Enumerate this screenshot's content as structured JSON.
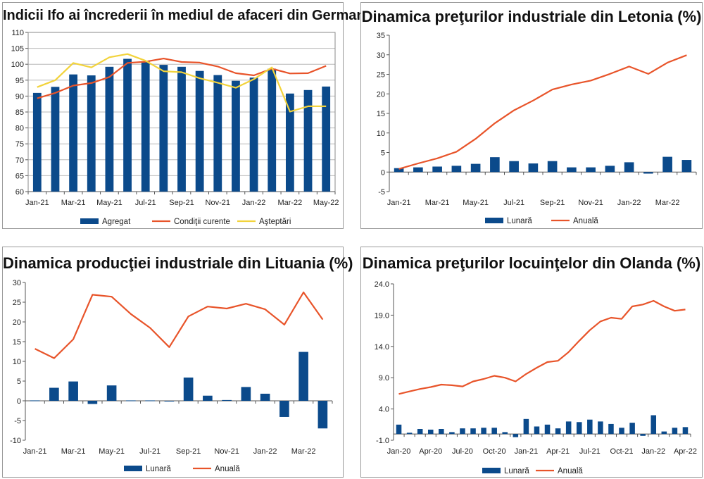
{
  "chart_data": [
    {
      "type": "bar+line",
      "title": "Indicii Ifo ai încrederii în mediul de afaceri din Germania",
      "categories": [
        "Jan-21",
        "Feb-21",
        "Mar-21",
        "Apr-21",
        "May-21",
        "Jun-21",
        "Jul-21",
        "Aug-21",
        "Sep-21",
        "Oct-21",
        "Nov-21",
        "Dec-21",
        "Jan-22",
        "Feb-22",
        "Mar-22",
        "Apr-22",
        "May-22"
      ],
      "tick_labels": [
        "Jan-21",
        "Mar-21",
        "May-21",
        "Jul-21",
        "Sep-21",
        "Nov-21",
        "Jan-22",
        "Mar-22",
        "May-22"
      ],
      "ylim": [
        60,
        110
      ],
      "yticks": [
        60,
        65,
        70,
        75,
        80,
        85,
        90,
        95,
        100,
        105,
        110
      ],
      "legend": "bottom",
      "series": [
        {
          "name": "Agregat",
          "kind": "bar",
          "color": "#0b4a8b",
          "values": [
            91,
            92.9,
            96.8,
            96.5,
            99.2,
            101.7,
            100.9,
            99.8,
            99.2,
            97.9,
            96.6,
            94.8,
            95.8,
            98.6,
            90.8,
            91.9,
            93.0
          ]
        },
        {
          "name": "Condiţii curente",
          "kind": "line",
          "color": "#e8542a",
          "values": [
            89.3,
            91.0,
            93.3,
            94.1,
            96.0,
            100.4,
            100.8,
            101.8,
            100.7,
            100.5,
            99.3,
            97.2,
            96.5,
            98.6,
            97.1,
            97.2,
            99.5
          ]
        },
        {
          "name": "Aşteptări",
          "kind": "line",
          "color": "#f2d33b",
          "values": [
            92.8,
            95.0,
            100.4,
            99.0,
            102.2,
            103.2,
            101.1,
            97.8,
            97.5,
            95.6,
            94.2,
            92.6,
            95.3,
            99.0,
            85.1,
            86.8,
            86.8
          ]
        }
      ]
    },
    {
      "type": "bar+line",
      "title": "Dinamica preţurilor industriale din Letonia (%)",
      "categories": [
        "Jan-21",
        "Feb-21",
        "Mar-21",
        "Apr-21",
        "May-21",
        "Jun-21",
        "Jul-21",
        "Aug-21",
        "Sep-21",
        "Oct-21",
        "Nov-21",
        "Dec-21",
        "Jan-22",
        "Feb-22",
        "Mar-22",
        "Apr-22"
      ],
      "tick_labels": [
        "Jan-21",
        "Mar-21",
        "May-21",
        "Jul-21",
        "Sep-21",
        "Nov-21",
        "Jan-22",
        "Mar-22"
      ],
      "ylim": [
        -5,
        35
      ],
      "yticks": [
        -5,
        0,
        5,
        10,
        15,
        20,
        25,
        30,
        35
      ],
      "legend": "bottom",
      "series": [
        {
          "name": "Lunară",
          "kind": "bar",
          "color": "#0b4a8b",
          "values": [
            1.0,
            1.2,
            1.4,
            1.6,
            2.1,
            3.8,
            2.8,
            2.2,
            2.8,
            1.2,
            1.2,
            1.6,
            2.5,
            -0.4,
            3.9,
            3.1
          ]
        },
        {
          "name": "Anuală",
          "kind": "line",
          "color": "#e8542a",
          "values": [
            0.8,
            2.2,
            3.5,
            5.2,
            8.5,
            12.5,
            15.8,
            18.3,
            21.1,
            22.4,
            23.4,
            25.1,
            27.0,
            25.1,
            28.0,
            29.9
          ]
        }
      ]
    },
    {
      "type": "bar+line",
      "title": "Dinamica producţiei industriale din Lituania (%)",
      "categories": [
        "Jan-21",
        "Feb-21",
        "Mar-21",
        "Apr-21",
        "May-21",
        "Jun-21",
        "Jul-21",
        "Aug-21",
        "Sep-21",
        "Oct-21",
        "Nov-21",
        "Dec-21",
        "Jan-22",
        "Feb-22",
        "Mar-22",
        "Apr-22"
      ],
      "tick_labels": [
        "Jan-21",
        "Mar-21",
        "May-21",
        "Jul-21",
        "Sep-21",
        "Nov-21",
        "Jan-22",
        "Mar-22"
      ],
      "ylim": [
        -10,
        30
      ],
      "yticks": [
        -10,
        -5,
        0,
        5,
        10,
        15,
        20,
        25,
        30
      ],
      "legend": "bottom",
      "series": [
        {
          "name": "Lunară",
          "kind": "bar",
          "color": "#0b4a8b",
          "values": [
            0.1,
            3.3,
            4.9,
            -0.8,
            3.9,
            0.1,
            0.1,
            0.0,
            5.9,
            1.3,
            0.2,
            3.5,
            1.8,
            -4.1,
            12.4,
            -7.0
          ]
        },
        {
          "name": "Anuală",
          "kind": "line",
          "color": "#e8542a",
          "values": [
            13.2,
            10.8,
            15.6,
            26.9,
            26.4,
            22.0,
            18.5,
            13.6,
            21.4,
            23.9,
            23.4,
            24.6,
            23.2,
            19.3,
            27.5,
            20.6
          ]
        }
      ]
    },
    {
      "type": "bar+line",
      "title": "Dinamica preţurilor locuinţelor din Olanda (%)",
      "categories": [
        "Jan-20",
        "Feb-20",
        "Mar-20",
        "Apr-20",
        "May-20",
        "Jun-20",
        "Jul-20",
        "Aug-20",
        "Sep-20",
        "Oct-20",
        "Nov-20",
        "Dec-20",
        "Jan-21",
        "Feb-21",
        "Mar-21",
        "Apr-21",
        "May-21",
        "Jun-21",
        "Jul-21",
        "Aug-21",
        "Sep-21",
        "Oct-21",
        "Nov-21",
        "Dec-21",
        "Jan-22",
        "Feb-22",
        "Mar-22",
        "Apr-22"
      ],
      "tick_labels": [
        "Jan-20",
        "Apr-20",
        "Jul-20",
        "Oct-20",
        "Jan-21",
        "Apr-21",
        "Jul-21",
        "Oct-21",
        "Jan-22",
        "Apr-22"
      ],
      "ylim": [
        -1.0,
        24.0
      ],
      "yticks": [
        -1.0,
        4.0,
        9.0,
        14.0,
        19.0,
        24.0
      ],
      "legend": "bottom",
      "series": [
        {
          "name": "Lunară",
          "kind": "bar",
          "color": "#0b4a8b",
          "values": [
            1.5,
            0.2,
            0.8,
            0.7,
            0.8,
            0.3,
            0.9,
            0.9,
            1.0,
            1.0,
            0.3,
            -0.5,
            2.4,
            1.2,
            1.5,
            0.9,
            2.0,
            1.9,
            2.3,
            2.0,
            1.6,
            1.0,
            1.8,
            -0.3,
            3.0,
            0.4,
            1.0,
            1.1
          ]
        },
        {
          "name": "Anuală",
          "kind": "line",
          "color": "#e8542a",
          "values": [
            6.4,
            6.8,
            7.2,
            7.5,
            7.9,
            7.8,
            7.6,
            8.4,
            8.8,
            9.3,
            9.0,
            8.4,
            9.6,
            10.6,
            11.5,
            11.7,
            13.1,
            14.9,
            16.6,
            18.0,
            18.6,
            18.4,
            20.4,
            20.7,
            21.3,
            20.4,
            19.7,
            19.9
          ]
        }
      ]
    }
  ]
}
